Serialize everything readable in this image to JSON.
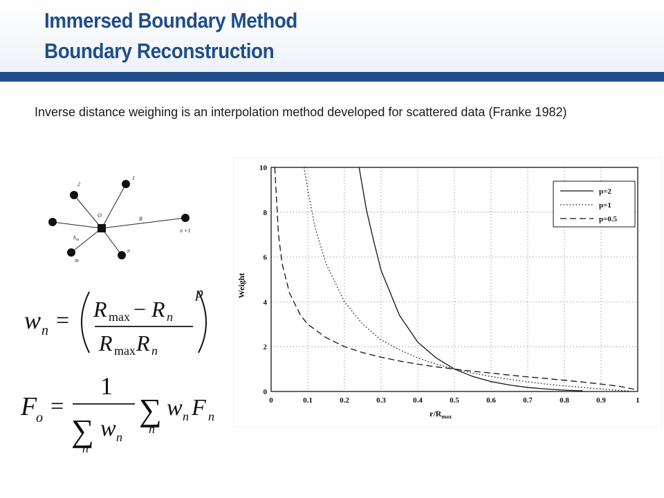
{
  "header": {
    "title_line1": "Immersed Boundary Method",
    "title_line2": "Boundary Reconstruction"
  },
  "intro_text": "Inverse distance weighing is an interpolation method developed for scattered data (Franke 1982)",
  "diagram": {
    "center_label": "O",
    "edge_label_r": "R",
    "edge_label_h": "h",
    "edge_label_h_sub": "m",
    "node_labels": [
      "2",
      "1",
      "n +1",
      "n",
      "m"
    ]
  },
  "formula1": {
    "lhs": "w",
    "lhs_sub": "n",
    "num_a": "R",
    "num_a_sub": "max",
    "num_minus": "−",
    "num_b": "R",
    "num_b_sub": "n",
    "den_a": "R",
    "den_a_sub": "max",
    "den_b": "R",
    "den_b_sub": "n",
    "exponent": "p"
  },
  "formula2": {
    "lhs": "F",
    "lhs_sub": "o",
    "numerator": "1",
    "sum": "∑",
    "den_w": "w",
    "den_w_sub": "n",
    "den_sum_sub": "n",
    "rhs_w": "w",
    "rhs_w_sub": "n",
    "rhs_f": "F",
    "rhs_f_sub": "n",
    "rhs_sum_sub": "n"
  },
  "chart_data": {
    "type": "line",
    "xlabel": "r/R",
    "xlabel_sub": "max",
    "ylabel": "Weight",
    "xlim": [
      0,
      1
    ],
    "ylim": [
      0,
      10
    ],
    "x_ticks": [
      "0",
      "0.1",
      "0.2",
      "0.3",
      "0.4",
      "0.5",
      "0.6",
      "0.7",
      "0.8",
      "0.9",
      "1"
    ],
    "y_ticks": [
      "0",
      "2",
      "4",
      "6",
      "8",
      "10"
    ],
    "grid": true,
    "legend_position": "top-right",
    "series": [
      {
        "name": "p=2",
        "style": "solid",
        "exponent": 2,
        "x": [
          0.24,
          0.26,
          0.28,
          0.3,
          0.35,
          0.4,
          0.45,
          0.5,
          0.55,
          0.6,
          0.65,
          0.7,
          0.75,
          0.8,
          0.85
        ],
        "y": [
          10,
          8.1,
          6.7,
          5.4,
          3.4,
          2.2,
          1.5,
          1.0,
          0.67,
          0.44,
          0.29,
          0.18,
          0.11,
          0.06,
          0.03
        ]
      },
      {
        "name": "p=1",
        "style": "dotted",
        "exponent": 1,
        "x": [
          0.09,
          0.1,
          0.12,
          0.15,
          0.2,
          0.25,
          0.3,
          0.35,
          0.4,
          0.45,
          0.5,
          0.55,
          0.6,
          0.65,
          0.7,
          0.75,
          0.8,
          0.85,
          0.9,
          0.95,
          0.98
        ],
        "y": [
          10,
          9.0,
          7.3,
          5.7,
          4.0,
          3.0,
          2.3,
          1.86,
          1.5,
          1.22,
          1.0,
          0.82,
          0.67,
          0.54,
          0.43,
          0.33,
          0.25,
          0.18,
          0.11,
          0.05,
          0.02
        ]
      },
      {
        "name": "p=0.5",
        "style": "dashed",
        "exponent": 0.5,
        "x": [
          0.01,
          0.02,
          0.03,
          0.05,
          0.08,
          0.1,
          0.15,
          0.2,
          0.25,
          0.3,
          0.35,
          0.4,
          0.45,
          0.5,
          0.55,
          0.6,
          0.65,
          0.7,
          0.75,
          0.8,
          0.85,
          0.9,
          0.95,
          0.99
        ],
        "y": [
          10,
          7.0,
          5.7,
          4.4,
          3.4,
          3.0,
          2.4,
          2.0,
          1.73,
          1.53,
          1.36,
          1.22,
          1.1,
          1.0,
          0.9,
          0.82,
          0.73,
          0.65,
          0.58,
          0.5,
          0.42,
          0.33,
          0.23,
          0.1
        ]
      }
    ]
  }
}
